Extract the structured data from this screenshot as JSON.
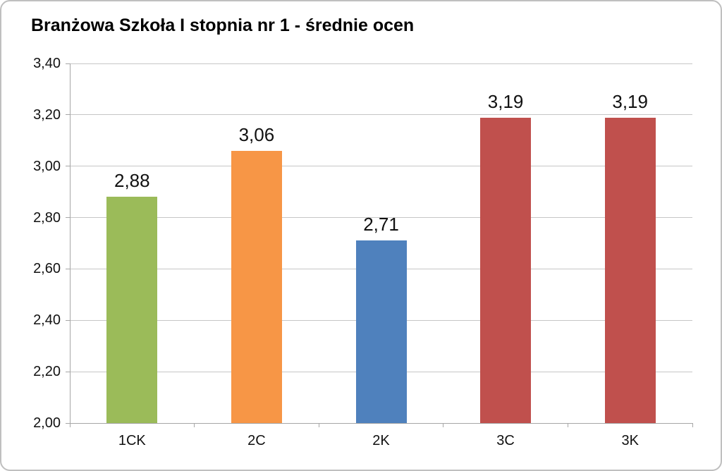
{
  "chart_data": {
    "type": "bar",
    "title": "Branżowa Szkoła I stopnia nr 1 - średnie ocen",
    "categories": [
      "1CK",
      "2C",
      "2K",
      "3C",
      "3K"
    ],
    "values": [
      2.88,
      3.06,
      2.71,
      3.19,
      3.19
    ],
    "value_labels": [
      "2,88",
      "3,06",
      "2,71",
      "3,19",
      "3,19"
    ],
    "bar_colors": [
      "#9BBB59",
      "#F79646",
      "#4F81BD",
      "#C0504D",
      "#C0504D"
    ],
    "xlabel": "",
    "ylabel": "",
    "ylim": [
      2.0,
      3.4
    ],
    "ytick_step": 0.2,
    "ytick_labels": [
      "2,00",
      "2,20",
      "2,40",
      "2,60",
      "2,80",
      "3,00",
      "3,20",
      "3,40"
    ],
    "grid": true,
    "legend_position": "none"
  },
  "frame": {
    "background": "#FFFFFF",
    "border_color": "#BFBFBF",
    "gridline_color": "#C6C6C6",
    "axis_color": "#A6A6A6",
    "text_color": "#111111"
  }
}
